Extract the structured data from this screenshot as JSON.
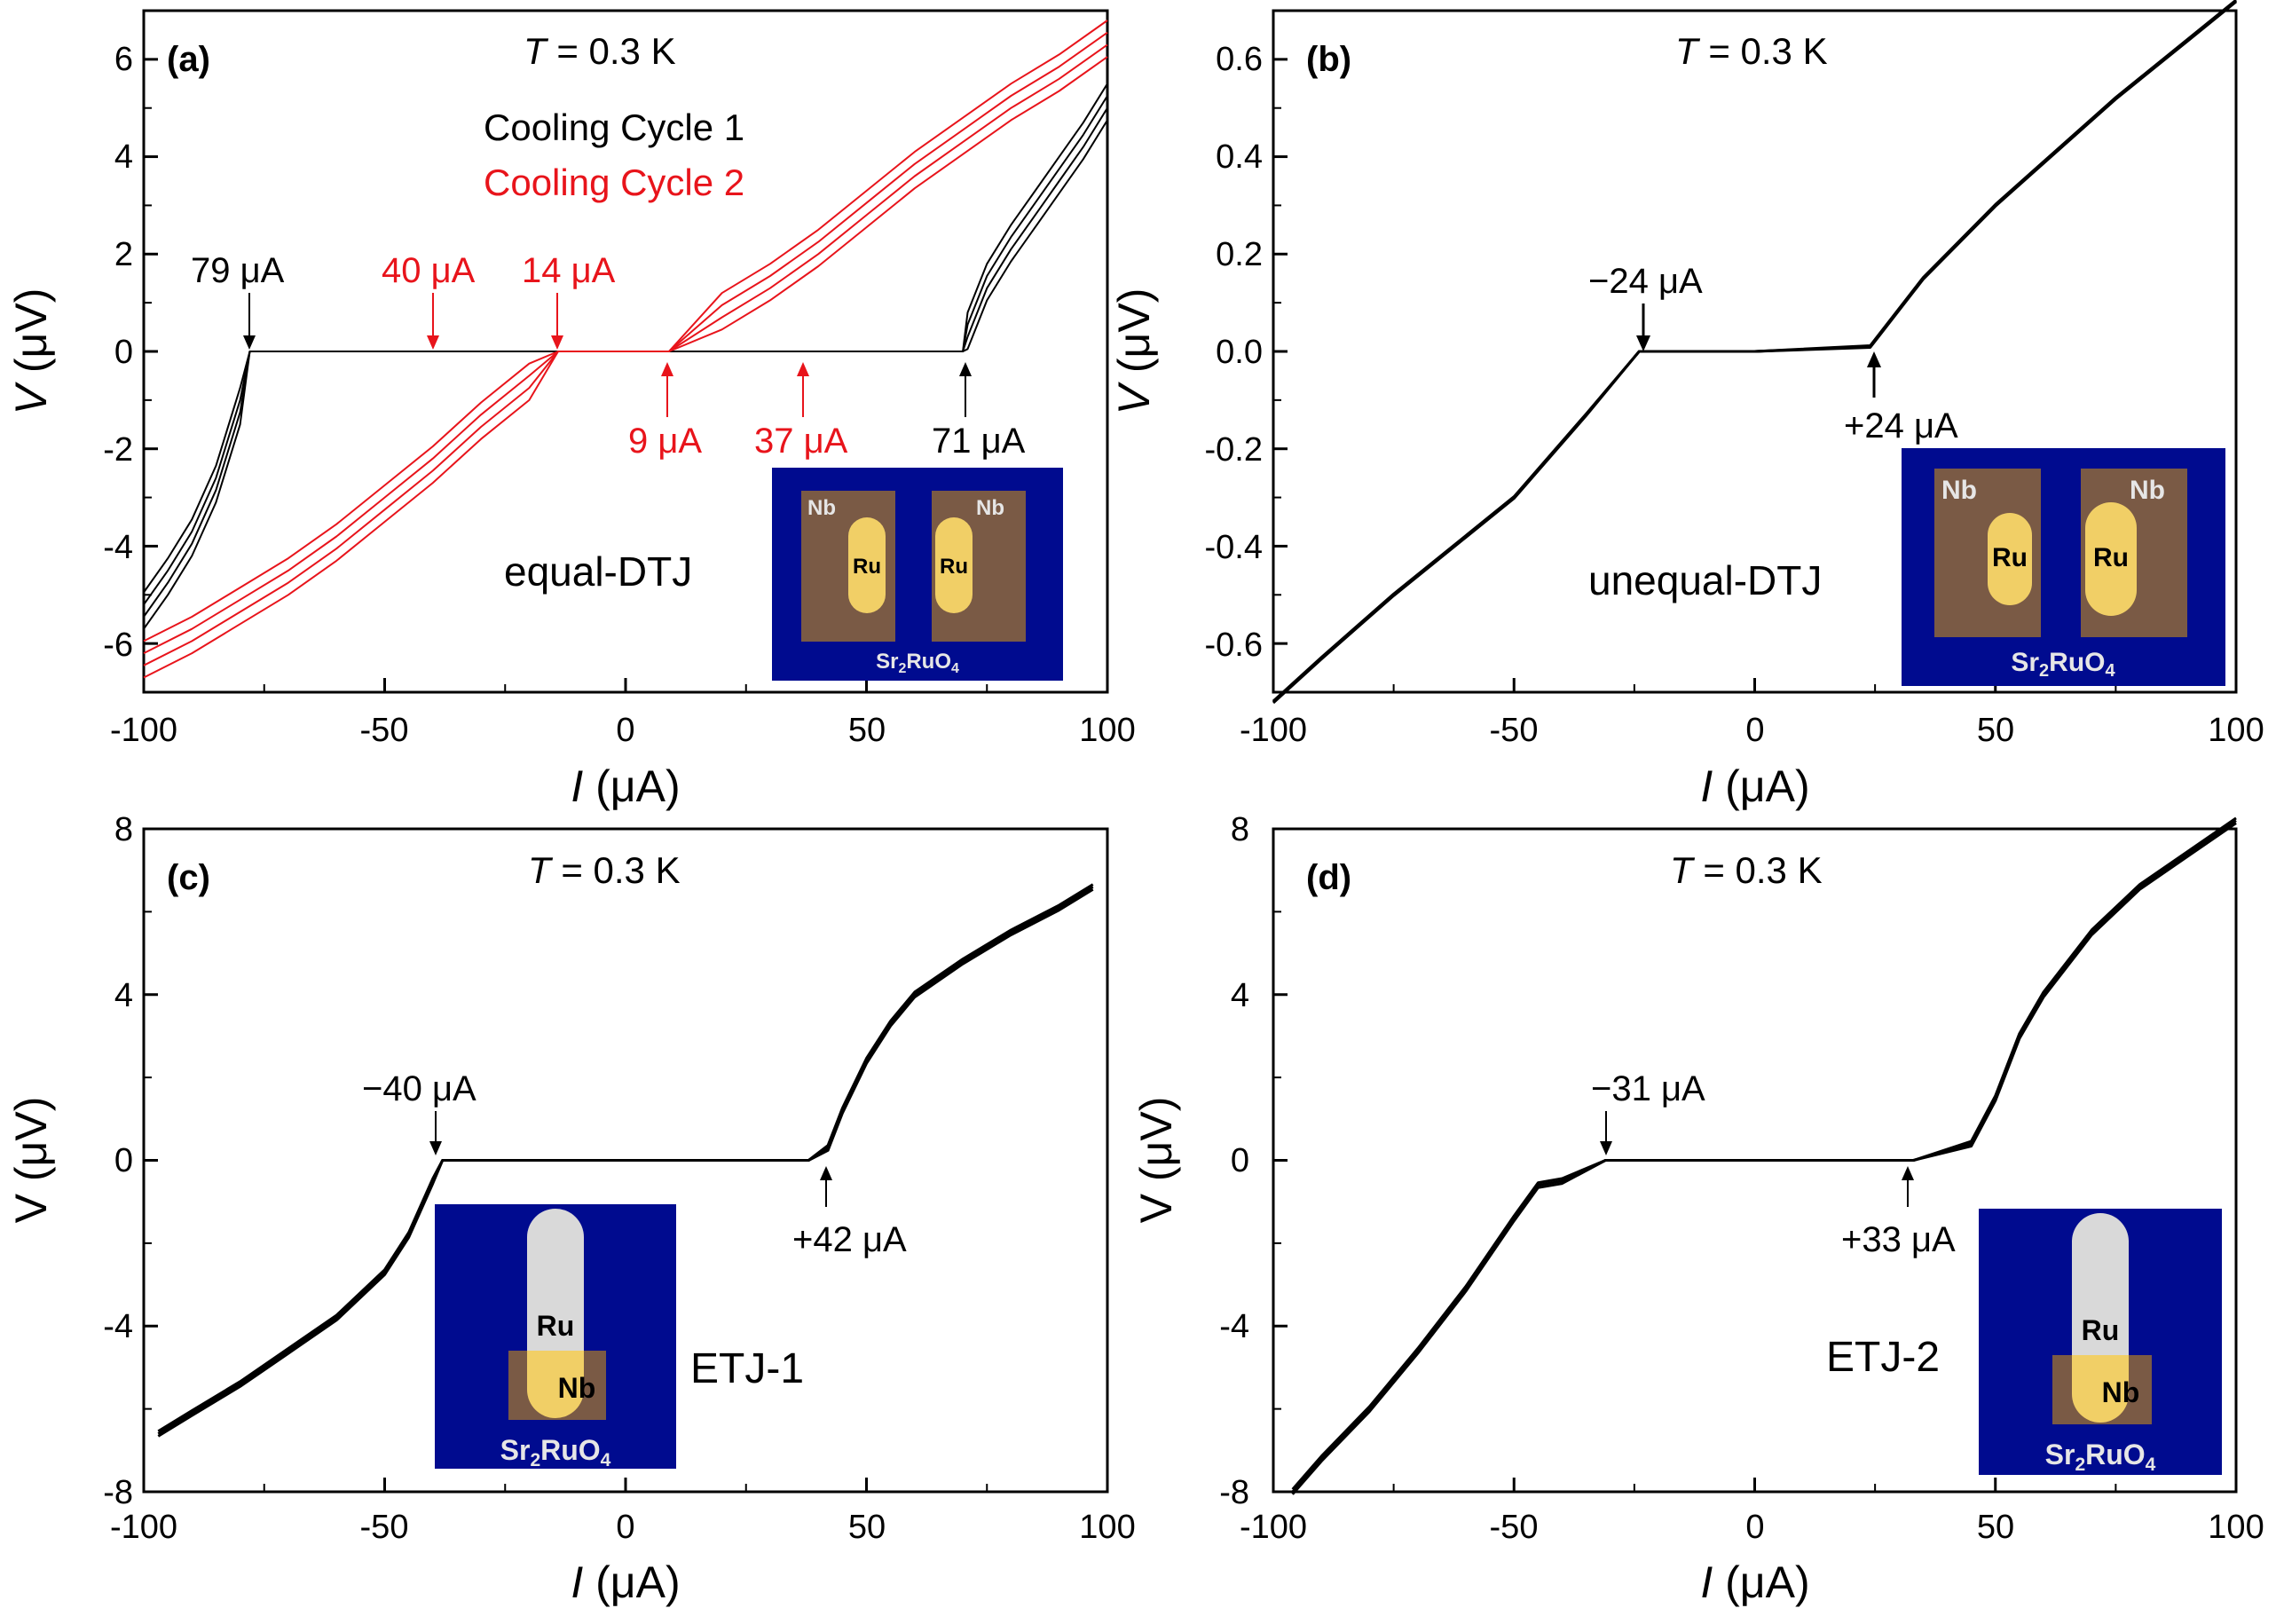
{
  "figure": {
    "colors": {
      "black": "#000000",
      "red": "#e8141b",
      "substrate": "#000b8f",
      "nb": "#7a5a45",
      "ru": "#f1cf66",
      "ru_light": "#d9d9d9",
      "label_light": "#e6e6e6"
    },
    "panels": [
      {
        "id": "a",
        "label": "(a)",
        "temp_prefix": "T",
        "temp_suffix": " = 0.3 K",
        "xlabel_symbol": "I",
        "xlabel_unit": " (μA)",
        "ylabel_symbol": "V",
        "ylabel_unit": " (μV)",
        "xticks": [
          "-100",
          "-50",
          "0",
          "50",
          "100"
        ],
        "yticks": [
          "-6",
          "-4",
          "-2",
          "0",
          "2",
          "4",
          "6"
        ],
        "legend": [
          {
            "text": "Cooling Cycle 1",
            "color": "#000000"
          },
          {
            "text": "Cooling Cycle 2",
            "color": "#e8141b"
          }
        ],
        "annotations": [
          {
            "text": "79 μA",
            "color": "#000000"
          },
          {
            "text": "40 μA",
            "color": "#e8141b"
          },
          {
            "text": "14 μA",
            "color": "#e8141b"
          },
          {
            "text": "9 μA",
            "color": "#e8141b"
          },
          {
            "text": "37 μA",
            "color": "#e8141b"
          },
          {
            "text": "71 μA",
            "color": "#000000"
          }
        ],
        "device_label": "equal-DTJ",
        "inset": {
          "nb_left": "Nb",
          "nb_right": "Nb",
          "ru": "Ru",
          "substrate_main": "Sr",
          "substrate_sub1": "2",
          "substrate_mid": "RuO",
          "substrate_sub2": "4"
        }
      },
      {
        "id": "b",
        "label": "(b)",
        "temp_prefix": "T",
        "temp_suffix": " = 0.3 K",
        "xlabel_symbol": "I",
        "xlabel_unit": " (μA)",
        "ylabel_symbol": "V",
        "ylabel_unit": " (μV)",
        "xticks": [
          "-100",
          "-50",
          "0",
          "50",
          "100"
        ],
        "yticks": [
          "-0.6",
          "-0.4",
          "-0.2",
          "0.0",
          "0.2",
          "0.4",
          "0.6"
        ],
        "annotations": [
          {
            "text": "−24 μA",
            "color": "#000000"
          },
          {
            "text": "+24 μA",
            "color": "#000000"
          }
        ],
        "device_label": "unequal-DTJ",
        "inset": {
          "nb_left": "Nb",
          "nb_right": "Nb",
          "ru": "Ru",
          "substrate_main": "Sr",
          "substrate_sub1": "2",
          "substrate_mid": "RuO",
          "substrate_sub2": "4"
        }
      },
      {
        "id": "c",
        "label": "(c)",
        "temp_prefix": "T",
        "temp_suffix": " = 0.3 K",
        "xlabel_symbol": "I",
        "xlabel_unit": " (μA)",
        "ylabel_symbol": "V",
        "ylabel_unit": " (μV)",
        "xticks": [
          "-100",
          "-50",
          "0",
          "50",
          "100"
        ],
        "yticks": [
          "-8",
          "-4",
          "0",
          "4",
          "8"
        ],
        "annotations": [
          {
            "text": "−40 μA",
            "color": "#000000"
          },
          {
            "text": "+42 μA",
            "color": "#000000"
          }
        ],
        "device_label": "ETJ-1",
        "inset": {
          "nb": "Nb",
          "ru": "Ru",
          "substrate_main": "Sr",
          "substrate_sub1": "2",
          "substrate_mid": "RuO",
          "substrate_sub2": "4"
        }
      },
      {
        "id": "d",
        "label": "(d)",
        "temp_prefix": "T",
        "temp_suffix": " = 0.3 K",
        "xlabel_symbol": "I",
        "xlabel_unit": " (μA)",
        "ylabel_symbol": "V",
        "ylabel_unit": " (μV)",
        "xticks": [
          "-100",
          "-50",
          "0",
          "50",
          "100"
        ],
        "yticks": [
          "-8",
          "-4",
          "0",
          "4",
          "8"
        ],
        "annotations": [
          {
            "text": "−31 μA",
            "color": "#000000"
          },
          {
            "text": "+33 μA",
            "color": "#000000"
          }
        ],
        "device_label": "ETJ-2",
        "inset": {
          "nb": "Nb",
          "ru": "Ru",
          "substrate_main": "Sr",
          "substrate_sub1": "2",
          "substrate_mid": "RuO",
          "substrate_sub2": "4"
        }
      }
    ]
  },
  "chart_data": [
    {
      "type": "line",
      "title": "(a) T = 0.3 K, equal-DTJ",
      "xlabel": "I (μA)",
      "ylabel": "V (μV)",
      "xlim": [
        -100,
        100
      ],
      "ylim": [
        -7,
        7
      ],
      "series": [
        {
          "name": "Cooling Cycle 1",
          "color": "#000000",
          "critical_currents_uA": [
            -79,
            71
          ],
          "x": [
            -100,
            -95,
            -90,
            -85,
            -80,
            -78,
            0,
            70,
            71,
            75,
            80,
            85,
            90,
            95,
            100
          ],
          "y": [
            -5.2,
            -4.5,
            -3.7,
            -2.6,
            -1.0,
            0,
            0,
            0,
            0.3,
            1.3,
            2.1,
            2.8,
            3.5,
            4.2,
            5.0
          ]
        },
        {
          "name": "Cooling Cycle 2",
          "color": "#e8141b",
          "critical_currents_uA": [
            -40,
            -14,
            9,
            37
          ],
          "x": [
            -100,
            -90,
            -80,
            -70,
            -60,
            -50,
            -40,
            -30,
            -20,
            -14,
            0,
            9,
            20,
            30,
            40,
            50,
            60,
            70,
            80,
            90,
            100
          ],
          "y": [
            -6.2,
            -5.7,
            -5.1,
            -4.5,
            -3.8,
            -3.0,
            -2.2,
            -1.3,
            -0.5,
            0,
            0,
            0,
            0.7,
            1.3,
            2.0,
            2.8,
            3.6,
            4.3,
            5.0,
            5.6,
            6.3
          ]
        }
      ]
    },
    {
      "type": "line",
      "title": "(b) T = 0.3 K, unequal-DTJ",
      "xlabel": "I (μA)",
      "ylabel": "V (μV)",
      "xlim": [
        -100,
        100
      ],
      "ylim": [
        -0.7,
        0.7
      ],
      "critical_currents_uA": [
        -24,
        24
      ],
      "series": [
        {
          "name": "unequal-DTJ",
          "color": "#000000",
          "x": [
            -100,
            -90,
            -75,
            -50,
            -35,
            -24,
            0,
            24,
            35,
            50,
            75,
            90,
            100
          ],
          "y": [
            -0.72,
            -0.63,
            -0.5,
            -0.3,
            -0.13,
            0,
            0,
            0.01,
            0.15,
            0.3,
            0.52,
            0.64,
            0.72
          ]
        }
      ]
    },
    {
      "type": "line",
      "title": "(c) T = 0.3 K, ETJ-1",
      "xlabel": "I (μA)",
      "ylabel": "V (μV)",
      "xlim": [
        -100,
        100
      ],
      "ylim": [
        -8,
        8
      ],
      "critical_currents_uA": [
        -40,
        42
      ],
      "series": [
        {
          "name": "ETJ-1",
          "color": "#000000",
          "x": [
            -97,
            -90,
            -80,
            -70,
            -60,
            -50,
            -45,
            -40,
            -38,
            0,
            38,
            42,
            45,
            50,
            55,
            60,
            70,
            80,
            90,
            97
          ],
          "y": [
            -6.6,
            -6.1,
            -5.4,
            -4.6,
            -3.8,
            -2.7,
            -1.8,
            -0.5,
            0,
            0,
            0,
            0.3,
            1.2,
            2.4,
            3.3,
            4.0,
            4.8,
            5.5,
            6.1,
            6.6
          ]
        }
      ]
    },
    {
      "type": "line",
      "title": "(d) T = 0.3 K, ETJ-2",
      "xlabel": "I (μA)",
      "ylabel": "V (μV)",
      "xlim": [
        -100,
        100
      ],
      "ylim": [
        -8,
        8
      ],
      "critical_currents_uA": [
        -31,
        33
      ],
      "series": [
        {
          "name": "ETJ-2",
          "color": "#000000",
          "x": [
            -96,
            -90,
            -80,
            -70,
            -60,
            -50,
            -45,
            -40,
            -31,
            0,
            33,
            45,
            50,
            55,
            60,
            70,
            80,
            90,
            100
          ],
          "y": [
            -8.0,
            -7.2,
            -6.0,
            -4.6,
            -3.1,
            -1.4,
            -0.6,
            -0.5,
            0,
            0,
            0,
            0.4,
            1.5,
            3.0,
            4.0,
            5.5,
            6.6,
            7.4,
            8.2
          ]
        }
      ]
    }
  ]
}
